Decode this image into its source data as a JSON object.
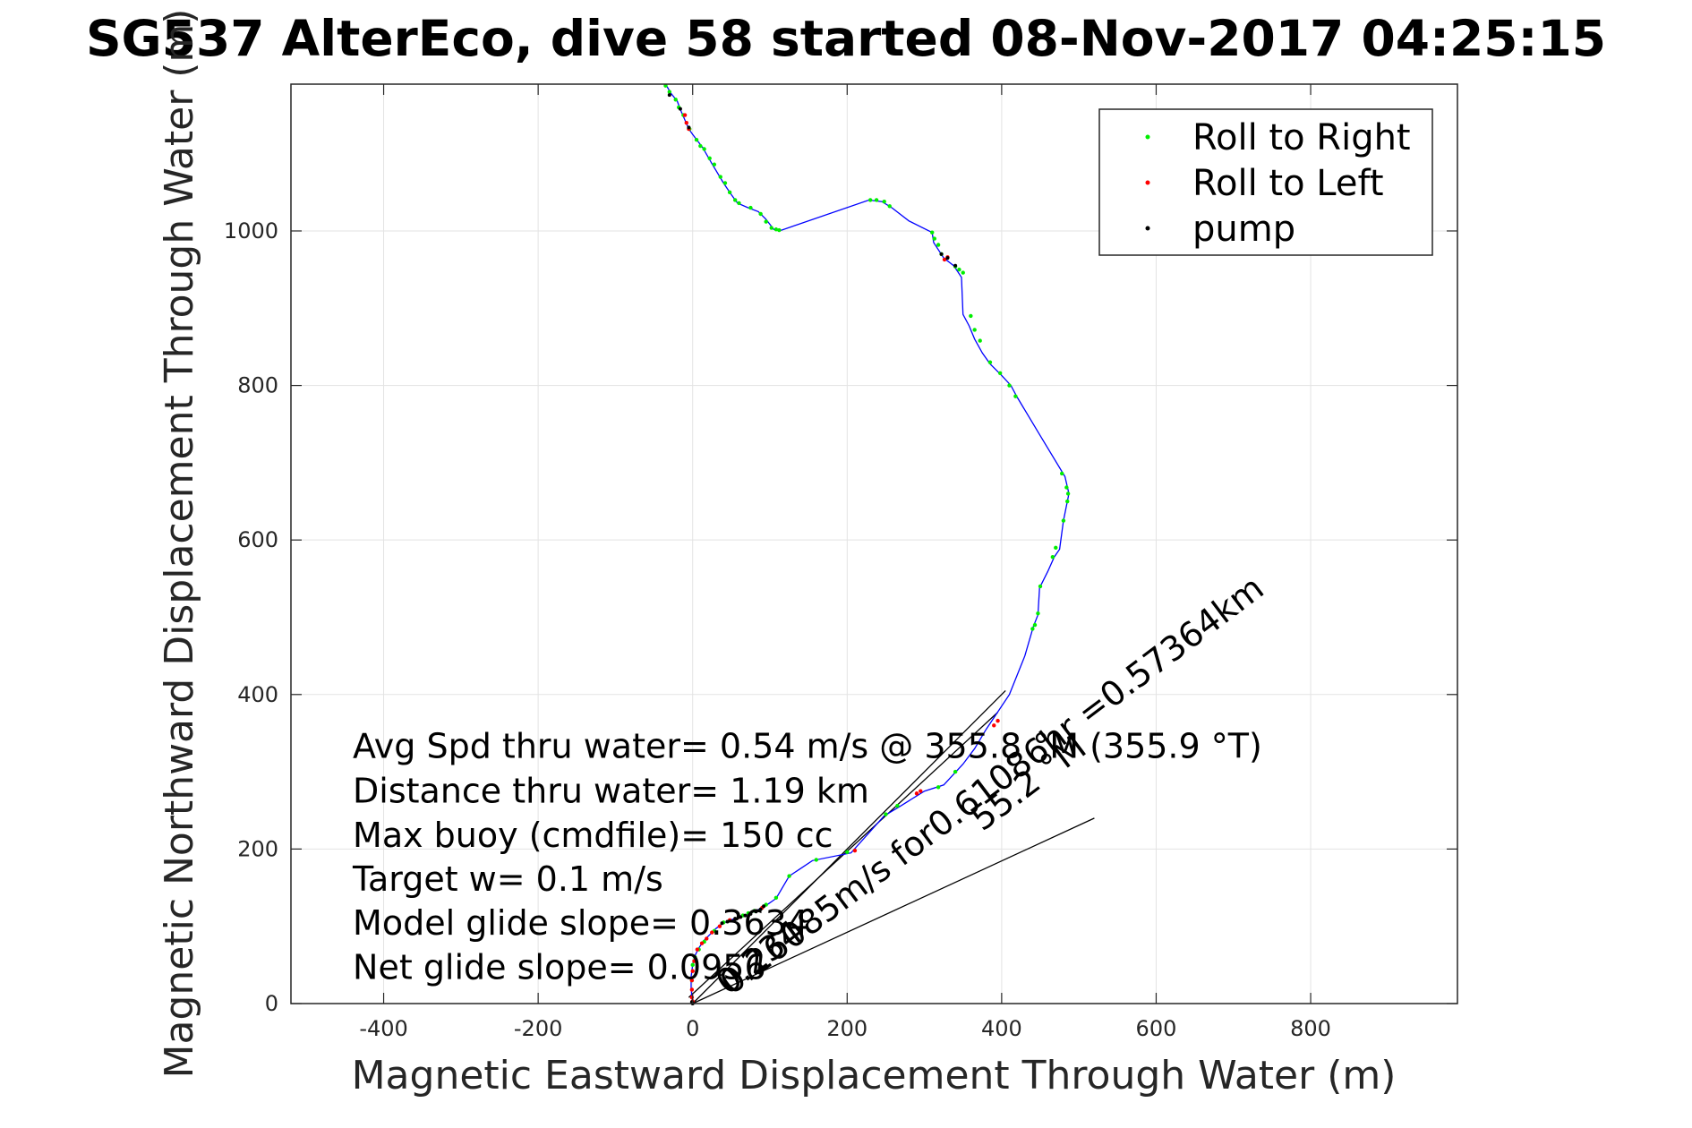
{
  "chart_data": {
    "type": "line",
    "title": "SG537 AlterEco, dive 58 started 08-Nov-2017 04:25:15",
    "xlabel": "Magnetic Eastward Displacement Through Water (m)",
    "ylabel": "Magnetic Northward Displacement Through Water (m)",
    "xlim": [
      -520,
      990
    ],
    "ylim": [
      0,
      1190
    ],
    "xticks": [
      -400,
      -200,
      0,
      200,
      400,
      600,
      800
    ],
    "yticks": [
      0,
      200,
      400,
      600,
      800,
      1000
    ],
    "xtick_labels": [
      "-400",
      "-200",
      "0",
      "200",
      "400",
      "600",
      "800"
    ],
    "ytick_labels": [
      "0",
      "200",
      "400",
      "600",
      "800",
      "1000"
    ],
    "grid": true,
    "legend_position": "top-right",
    "legend": [
      {
        "label": "Roll to Right",
        "color": "#00ee00"
      },
      {
        "label": "Roll to Left",
        "color": "#ff0000"
      },
      {
        "label": "pump",
        "color": "#000000"
      }
    ],
    "track_color": "#0000ff",
    "track": [
      [
        0,
        0
      ],
      [
        -1,
        8
      ],
      [
        -2,
        20
      ],
      [
        -2,
        35
      ],
      [
        0,
        50
      ],
      [
        3,
        62
      ],
      [
        8,
        72
      ],
      [
        15,
        82
      ],
      [
        23,
        90
      ],
      [
        30,
        97
      ],
      [
        38,
        103
      ],
      [
        48,
        108
      ],
      [
        58,
        111
      ],
      [
        70,
        115
      ],
      [
        82,
        120
      ],
      [
        95,
        127
      ],
      [
        108,
        136
      ],
      [
        125,
        165
      ],
      [
        155,
        185
      ],
      [
        205,
        195
      ],
      [
        248,
        243
      ],
      [
        268,
        255
      ],
      [
        300,
        275
      ],
      [
        325,
        283
      ],
      [
        350,
        310
      ],
      [
        365,
        330
      ],
      [
        380,
        355
      ],
      [
        410,
        400
      ],
      [
        430,
        450
      ],
      [
        441,
        488
      ],
      [
        447,
        503
      ],
      [
        449,
        538
      ],
      [
        460,
        560
      ],
      [
        468,
        578
      ],
      [
        475,
        588
      ],
      [
        480,
        625
      ],
      [
        487,
        660
      ],
      [
        482,
        682
      ],
      [
        450,
        735
      ],
      [
        420,
        785
      ],
      [
        412,
        800
      ],
      [
        400,
        813
      ],
      [
        385,
        828
      ],
      [
        375,
        842
      ],
      [
        365,
        860
      ],
      [
        358,
        877
      ],
      [
        350,
        892
      ],
      [
        348,
        940
      ],
      [
        338,
        955
      ],
      [
        325,
        965
      ],
      [
        312,
        985
      ],
      [
        310,
        998
      ],
      [
        280,
        1013
      ],
      [
        258,
        1030
      ],
      [
        245,
        1038
      ],
      [
        228,
        1040
      ],
      [
        115,
        1001
      ],
      [
        105,
        1002
      ],
      [
        95,
        1015
      ],
      [
        85,
        1025
      ],
      [
        72,
        1030
      ],
      [
        58,
        1036
      ],
      [
        50,
        1047
      ],
      [
        40,
        1062
      ],
      [
        25,
        1087
      ],
      [
        13,
        1108
      ],
      [
        0,
        1125
      ],
      [
        -5,
        1132
      ],
      [
        -15,
        1155
      ],
      [
        -20,
        1168
      ],
      [
        -28,
        1178
      ],
      [
        -35,
        1190
      ]
    ],
    "roll_right_points": [
      [
        -35,
        1188
      ],
      [
        -30,
        1180
      ],
      [
        -22,
        1170
      ],
      [
        -18,
        1160
      ],
      [
        -12,
        1150
      ],
      [
        -4,
        1132
      ],
      [
        5,
        1118
      ],
      [
        10,
        1110
      ],
      [
        15,
        1106
      ],
      [
        22,
        1094
      ],
      [
        28,
        1086
      ],
      [
        36,
        1070
      ],
      [
        42,
        1062
      ],
      [
        48,
        1050
      ],
      [
        55,
        1040
      ],
      [
        60,
        1036
      ],
      [
        75,
        1030
      ],
      [
        88,
        1022
      ],
      [
        95,
        1012
      ],
      [
        102,
        1004
      ],
      [
        108,
        1002
      ],
      [
        112,
        1001
      ],
      [
        230,
        1040
      ],
      [
        238,
        1040
      ],
      [
        248,
        1038
      ],
      [
        255,
        1032
      ],
      [
        310,
        998
      ],
      [
        313,
        990
      ],
      [
        318,
        982
      ],
      [
        322,
        970
      ],
      [
        340,
        954
      ],
      [
        345,
        950
      ],
      [
        350,
        946
      ],
      [
        360,
        890
      ],
      [
        365,
        872
      ],
      [
        372,
        858
      ],
      [
        385,
        830
      ],
      [
        398,
        816
      ],
      [
        410,
        800
      ],
      [
        418,
        786
      ],
      [
        478,
        686
      ],
      [
        484,
        668
      ],
      [
        486,
        660
      ],
      [
        485,
        650
      ],
      [
        480,
        625
      ],
      [
        470,
        590
      ],
      [
        466,
        578
      ],
      [
        450,
        540
      ],
      [
        447,
        505
      ],
      [
        443,
        490
      ],
      [
        440,
        485
      ],
      [
        340,
        300
      ],
      [
        318,
        280
      ],
      [
        265,
        256
      ],
      [
        250,
        245
      ],
      [
        200,
        196
      ],
      [
        160,
        186
      ],
      [
        125,
        165
      ],
      [
        108,
        137
      ],
      [
        95,
        128
      ],
      [
        80,
        120
      ],
      [
        72,
        117
      ],
      [
        65,
        114
      ],
      [
        40,
        105
      ],
      [
        28,
        94
      ],
      [
        15,
        80
      ],
      [
        8,
        70
      ],
      [
        3,
        60
      ],
      [
        0,
        50
      ],
      [
        -1,
        30
      ]
    ],
    "roll_left_points": [
      [
        -10,
        1150
      ],
      [
        -8,
        1140
      ],
      [
        -5,
        1132
      ],
      [
        330,
        966
      ],
      [
        326,
        963
      ],
      [
        90,
        124
      ],
      [
        60,
        112
      ],
      [
        48,
        108
      ],
      [
        35,
        100
      ],
      [
        25,
        92
      ],
      [
        18,
        84
      ],
      [
        12,
        78
      ],
      [
        6,
        70
      ],
      [
        2,
        55
      ],
      [
        0,
        42
      ],
      [
        -1,
        30
      ],
      [
        -1,
        18
      ],
      [
        -1,
        8
      ],
      [
        0,
        3
      ],
      [
        210,
        198
      ],
      [
        290,
        272
      ],
      [
        295,
        275
      ],
      [
        390,
        360
      ],
      [
        395,
        366
      ]
    ],
    "pump_points": [
      [
        -30,
        1176
      ],
      [
        -16,
        1158
      ],
      [
        -5,
        1134
      ],
      [
        322,
        970
      ],
      [
        330,
        965
      ],
      [
        340,
        955
      ],
      [
        38,
        104
      ],
      [
        45,
        106
      ],
      [
        55,
        110
      ],
      [
        62,
        112
      ],
      [
        68,
        114
      ],
      [
        75,
        116
      ],
      [
        82,
        119
      ],
      [
        88,
        122
      ],
      [
        92,
        126
      ],
      [
        -1,
        2
      ],
      [
        0,
        0
      ]
    ],
    "lines": [
      {
        "from": [
          0,
          0
        ],
        "to": [
          405,
          405
        ]
      },
      {
        "from": [
          0,
          0
        ],
        "to": [
          520,
          240
        ]
      },
      {
        "from": [
          -5,
          8
        ],
        "to": [
          395,
          377
        ]
      }
    ],
    "annotations": [
      {
        "text": "Avg Spd thru water=  0.54 m/s @ 355.8 °M (355.9 °T)",
        "x": -440,
        "y": 318
      },
      {
        "text": "Distance thru water=  1.19 km",
        "x": -440,
        "y": 260
      },
      {
        "text": "Max buoy (cmdfile)= 150 cc",
        "x": -440,
        "y": 203
      },
      {
        "text": "Target w= 0.1 m/s",
        "x": -440,
        "y": 146
      },
      {
        "text": "Model glide slope= 0.3634",
        "x": -440,
        "y": 89
      },
      {
        "text": "Net glide slope= 0.0956",
        "x": -440,
        "y": 32
      }
    ],
    "rotated_annotations": [
      {
        "text": "0.26085m/s for0.61086hr =0.57364km",
        "x": 50,
        "y": 10,
        "angle": 37
      },
      {
        "text": "55.2 °M",
        "x": 375,
        "y": 222,
        "angle": 37
      },
      {
        "text": "0.234",
        "x": 45,
        "y": 10,
        "angle": 37
      }
    ]
  }
}
